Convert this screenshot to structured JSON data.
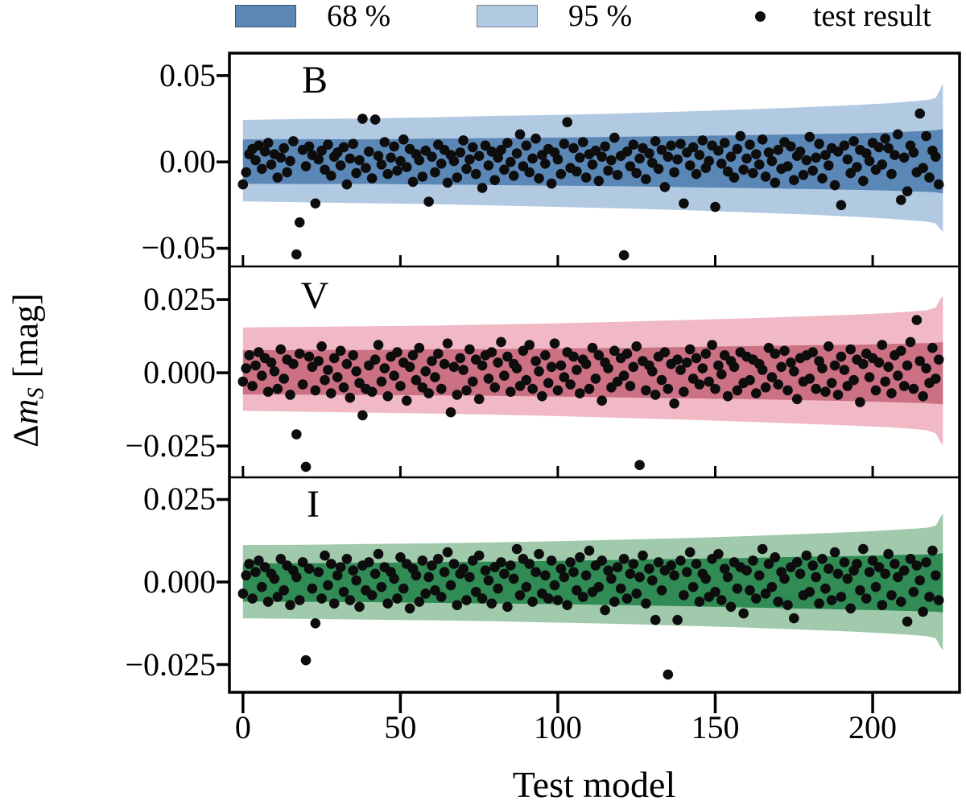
{
  "figure": {
    "legend": [
      {
        "type": "patch",
        "label": "68 %"
      },
      {
        "type": "patch",
        "label": "95 %"
      },
      {
        "type": "marker",
        "label": "test result"
      }
    ],
    "xlabel": "Test model",
    "ylabel": {
      "prefix": "Δ",
      "variable": "m",
      "subscript": "S",
      "suffix": "[mag]",
      "plain": "Δm_S [mag]"
    }
  },
  "colors": {
    "marker": "#0d0d0d",
    "frame": "#000000",
    "legend68": "#5a87b6",
    "legend95": "#b2c9e2"
  },
  "chart_data": {
    "type": "area+scatter",
    "description": "Residuals of surrogate-model test results in B, V, I bands with 68% and 95% confidence bands",
    "x_axis": {
      "label": "Test model",
      "ticks": [
        0,
        50,
        100,
        150,
        200
      ],
      "tick_labels": [
        "0",
        "50",
        "100",
        "150",
        "200"
      ],
      "lim": [
        -4.3,
        227.6
      ]
    },
    "panels": [
      {
        "label": "B",
        "ylim": [
          -0.0605,
          0.063
        ],
        "yticks": [
          {
            "t": "0.05",
            "v": 0.05
          },
          {
            "t": "0.00",
            "v": 0.0
          },
          {
            "t": "−0.05",
            "v": -0.05
          }
        ],
        "colors": {
          "band68": "#5a87b6",
          "band95": "#b2c9e2"
        },
        "band95": {
          "x": [
            0,
            20,
            40,
            60,
            80,
            100,
            120,
            140,
            160,
            180,
            195,
            205,
            212,
            217,
            220,
            221.5,
            222.3
          ],
          "upper": [
            0.0243,
            0.0249,
            0.0252,
            0.0258,
            0.0267,
            0.0272,
            0.0281,
            0.0292,
            0.0304,
            0.0318,
            0.033,
            0.034,
            0.035,
            0.0358,
            0.037,
            0.042,
            0.0458
          ],
          "lower": [
            -0.0228,
            -0.0234,
            -0.0239,
            -0.0244,
            -0.0252,
            -0.026,
            -0.0269,
            -0.0279,
            -0.0292,
            -0.0305,
            -0.0318,
            -0.0328,
            -0.0338,
            -0.0345,
            -0.0356,
            -0.039,
            -0.0405
          ]
        },
        "band68": {
          "x": [
            0,
            20,
            40,
            60,
            80,
            100,
            120,
            140,
            160,
            180,
            195,
            205,
            212,
            217,
            220,
            222.3
          ],
          "upper": [
            0.013,
            0.0132,
            0.0131,
            0.0135,
            0.0138,
            0.0141,
            0.0146,
            0.015,
            0.0155,
            0.0161,
            0.0166,
            0.0171,
            0.0176,
            0.018,
            0.0184,
            0.019
          ],
          "lower": [
            -0.0126,
            -0.0128,
            -0.0127,
            -0.0131,
            -0.0134,
            -0.0137,
            -0.0141,
            -0.0146,
            -0.0151,
            -0.0157,
            -0.0162,
            -0.0166,
            -0.017,
            -0.0173,
            -0.0176,
            -0.0182
          ]
        },
        "scatter_x_step": 1,
        "scatter_y_unit": 0.0001,
        "scatter_y": [
          -130,
          -60,
          45,
          75,
          10,
          95,
          -40,
          60,
          110,
          -15,
          45,
          -90,
          25,
          80,
          -60,
          5,
          120,
          -535,
          -350,
          70,
          -25,
          90,
          40,
          -240,
          15,
          65,
          -45,
          100,
          -80,
          30,
          55,
          -20,
          85,
          -130,
          20,
          105,
          -65,
          10,
          250,
          -35,
          60,
          -95,
          245,
          35,
          -15,
          115,
          -70,
          25,
          90,
          -50,
          5,
          130,
          -30,
          75,
          -115,
          45,
          10,
          -85,
          65,
          -230,
          30,
          -60,
          100,
          -10,
          70,
          -120,
          40,
          5,
          -90,
          55,
          125,
          -40,
          15,
          85,
          -70,
          35,
          -150,
          95,
          -20,
          60,
          -105,
          25,
          70,
          -45,
          110,
          0,
          -80,
          50,
          160,
          -25,
          95,
          -60,
          20,
          135,
          -95,
          40,
          -10,
          75,
          -125,
          55,
          15,
          -70,
          105,
          230,
          -35,
          80,
          -55,
          25,
          115,
          -90,
          45,
          -15,
          65,
          -110,
          30,
          90,
          -50,
          10,
          140,
          -75,
          35,
          -540,
          60,
          -25,
          100,
          -65,
          20,
          80,
          -100,
          50,
          -5,
          120,
          -40,
          70,
          -145,
          30,
          95,
          -60,
          15,
          105,
          -240,
          55,
          -20,
          85,
          -70,
          40,
          125,
          -35,
          5,
          95,
          -260,
          65,
          -10,
          110,
          -55,
          30,
          -90,
          75,
          150,
          -45,
          20,
          100,
          -65,
          45,
          -15,
          130,
          -85,
          55,
          5,
          -120,
          70,
          -40,
          115,
          -25,
          90,
          -105,
          35,
          60,
          -75,
          10,
          145,
          -50,
          25,
          105,
          -95,
          40,
          -20,
          80,
          -135,
          60,
          -250,
          95,
          15,
          -65,
          120,
          -30,
          70,
          -110,
          50,
          5,
          110,
          -45,
          85,
          -15,
          135,
          80,
          -70,
          40,
          160,
          -220,
          25,
          -170,
          95,
          55,
          -60,
          280,
          -35,
          150,
          -90,
          65,
          30,
          -130
        ]
      },
      {
        "label": "V",
        "ylim": [
          -0.0357,
          0.0363
        ],
        "yticks": [
          {
            "t": "0.025",
            "v": 0.025
          },
          {
            "t": "0.000",
            "v": 0.0
          },
          {
            "t": "−0.025",
            "v": -0.025
          }
        ],
        "colors": {
          "band68": "#cb7183",
          "band95": "#f0b9c5"
        },
        "band95": {
          "x": [
            0,
            20,
            40,
            60,
            80,
            100,
            120,
            140,
            160,
            180,
            195,
            205,
            212,
            217,
            220,
            221.5,
            222.3
          ],
          "upper": [
            0.0155,
            0.0157,
            0.0159,
            0.0161,
            0.0165,
            0.0169,
            0.0174,
            0.018,
            0.0186,
            0.0193,
            0.0199,
            0.0204,
            0.0209,
            0.0213,
            0.0222,
            0.0252,
            0.0262
          ],
          "lower": [
            -0.013,
            -0.0133,
            -0.0136,
            -0.0139,
            -0.0143,
            -0.0148,
            -0.0154,
            -0.016,
            -0.0167,
            -0.0175,
            -0.0181,
            -0.0186,
            -0.0191,
            -0.0196,
            -0.0206,
            -0.0236,
            -0.0248
          ]
        },
        "band68": {
          "x": [
            0,
            20,
            40,
            60,
            80,
            100,
            120,
            140,
            160,
            180,
            195,
            205,
            212,
            217,
            220,
            222.3
          ],
          "upper": [
            0.0077,
            0.0078,
            0.0078,
            0.008,
            0.0081,
            0.0083,
            0.0085,
            0.0088,
            0.0091,
            0.0094,
            0.0096,
            0.0098,
            0.01,
            0.0101,
            0.0103,
            0.0105
          ],
          "lower": [
            -0.0074,
            -0.0075,
            -0.0076,
            -0.0077,
            -0.0079,
            -0.0081,
            -0.0084,
            -0.0087,
            -0.009,
            -0.0094,
            -0.0097,
            -0.01,
            -0.0102,
            -0.0104,
            -0.0106,
            -0.0108
          ]
        },
        "scatter_x_step": 1,
        "scatter_y_unit": 0.0001,
        "scatter_y": [
          -30,
          15,
          60,
          -45,
          25,
          70,
          -10,
          50,
          -65,
          35,
          5,
          -55,
          80,
          -20,
          45,
          -75,
          30,
          -210,
          65,
          -40,
          -321,
          55,
          20,
          -60,
          40,
          90,
          -25,
          10,
          -70,
          50,
          -15,
          75,
          -50,
          30,
          -85,
          60,
          5,
          -35,
          -145,
          -55,
          25,
          -65,
          45,
          95,
          -30,
          15,
          -80,
          55,
          -10,
          70,
          -45,
          35,
          -95,
          20,
          60,
          -25,
          85,
          -50,
          5,
          -70,
          40,
          -15,
          65,
          -55,
          30,
          100,
          -135,
          20,
          -75,
          50,
          10,
          -60,
          80,
          -30,
          45,
          -90,
          25,
          60,
          -20,
          70,
          -50,
          35,
          105,
          -10,
          55,
          -65,
          30,
          15,
          -45,
          75,
          -25,
          95,
          -55,
          40,
          5,
          -80,
          60,
          -35,
          20,
          100,
          -60,
          25,
          -15,
          70,
          -40,
          55,
          10,
          -70,
          45,
          30,
          -55,
          85,
          -20,
          60,
          -95,
          35,
          15,
          -50,
          75,
          -30,
          50,
          -10,
          65,
          -45,
          20,
          90,
          -315,
          40,
          -60,
          25,
          5,
          -75,
          55,
          -25,
          70,
          -55,
          30,
          -105,
          45,
          10,
          -65,
          35,
          80,
          -20,
          50,
          -40,
          15,
          65,
          -30,
          95,
          -55,
          25,
          -5,
          60,
          -80,
          40,
          20,
          -60,
          70,
          -35,
          55,
          -25,
          45,
          -70,
          30,
          10,
          -50,
          85,
          -15,
          65,
          -40,
          20,
          75,
          -60,
          35,
          5,
          -90,
          50,
          -30,
          60,
          -20,
          70,
          -55,
          40,
          15,
          -65,
          90,
          -35,
          25,
          -75,
          55,
          10,
          -45,
          80,
          -25,
          45,
          -100,
          30,
          65,
          -15,
          50,
          -60,
          35,
          95,
          -30,
          20,
          -70,
          60,
          -10,
          75,
          -45,
          25,
          105,
          -55,
          180,
          40,
          -80,
          15,
          -35,
          85,
          -20,
          45
        ]
      },
      {
        "label": "I",
        "ylim": [
          -0.0334,
          0.0317
        ],
        "yticks": [
          {
            "t": "0.025",
            "v": 0.025
          },
          {
            "t": "0.000",
            "v": 0.0
          },
          {
            "t": "−0.025",
            "v": -0.025
          }
        ],
        "colors": {
          "band68": "#308b55",
          "band95": "#a0caab"
        },
        "band95": {
          "x": [
            0,
            20,
            40,
            60,
            80,
            100,
            120,
            140,
            160,
            180,
            195,
            205,
            212,
            217,
            220,
            221.5,
            222.3
          ],
          "upper": [
            0.0112,
            0.0113,
            0.0115,
            0.0117,
            0.012,
            0.0124,
            0.0128,
            0.0133,
            0.0139,
            0.0146,
            0.0152,
            0.0157,
            0.0161,
            0.0164,
            0.017,
            0.0196,
            0.0207
          ],
          "lower": [
            -0.011,
            -0.0112,
            -0.0114,
            -0.0116,
            -0.0119,
            -0.0123,
            -0.0127,
            -0.0132,
            -0.0138,
            -0.0145,
            -0.0151,
            -0.0156,
            -0.016,
            -0.0164,
            -0.017,
            -0.0196,
            -0.0207
          ]
        },
        "band68": {
          "x": [
            0,
            20,
            40,
            60,
            80,
            100,
            120,
            140,
            160,
            180,
            195,
            205,
            212,
            217,
            220,
            222.3
          ],
          "upper": [
            0.0056,
            0.0057,
            0.0058,
            0.006,
            0.0062,
            0.0064,
            0.0067,
            0.007,
            0.0073,
            0.0077,
            0.0079,
            0.0081,
            0.0083,
            0.0084,
            0.0085,
            0.0087
          ],
          "lower": [
            -0.0059,
            -0.006,
            -0.0061,
            -0.0063,
            -0.0065,
            -0.0067,
            -0.007,
            -0.0073,
            -0.0077,
            -0.0081,
            -0.0084,
            -0.0086,
            -0.0088,
            -0.0089,
            -0.009,
            -0.0092
          ]
        },
        "scatter_x_step": 1,
        "scatter_y_unit": 0.0001,
        "scatter_y": [
          -35,
          20,
          55,
          -50,
          30,
          65,
          -15,
          45,
          -60,
          25,
          10,
          -45,
          70,
          -25,
          50,
          -70,
          35,
          15,
          -55,
          60,
          -237,
          40,
          -20,
          -125,
          30,
          -50,
          80,
          -10,
          55,
          -65,
          20,
          45,
          -30,
          70,
          -55,
          35,
          5,
          -75,
          50,
          -25,
          60,
          -40,
          25,
          85,
          -15,
          45,
          -65,
          30,
          10,
          -50,
          75,
          -20,
          55,
          -80,
          40,
          20,
          -60,
          65,
          -35,
          15,
          50,
          -25,
          70,
          -45,
          30,
          90,
          -10,
          55,
          -70,
          25,
          40,
          -55,
          15,
          65,
          -30,
          80,
          -50,
          35,
          5,
          -65,
          45,
          -20,
          60,
          25,
          -75,
          50,
          10,
          100,
          -40,
          70,
          -15,
          55,
          -60,
          30,
          85,
          -35,
          20,
          -50,
          65,
          -10,
          -55,
          40,
          15,
          -70,
          60,
          30,
          -25,
          75,
          -45,
          20,
          95,
          -30,
          50,
          -15,
          65,
          -85,
          35,
          10,
          -60,
          45,
          -20,
          70,
          -50,
          25,
          55,
          -35,
          15,
          80,
          -65,
          40,
          5,
          -115,
          60,
          -25,
          35,
          -280,
          50,
          20,
          -115,
          65,
          -40,
          30,
          90,
          -15,
          55,
          -60,
          25,
          10,
          -45,
          70,
          -30,
          85,
          -55,
          40,
          15,
          -75,
          60,
          -20,
          45,
          -95,
          35,
          -25,
          65,
          -50,
          20,
          100,
          -35,
          55,
          -15,
          75,
          -60,
          30,
          10,
          -70,
          45,
          -110,
          60,
          25,
          -40,
          80,
          -30,
          50,
          15,
          -65,
          70,
          -20,
          40,
          -55,
          90,
          25,
          -45,
          60,
          10,
          -80,
          35,
          55,
          -25,
          100,
          -50,
          30,
          65,
          -15,
          45,
          -70,
          25,
          85,
          -40,
          55,
          15,
          -60,
          35,
          -120,
          70,
          -30,
          50,
          5,
          -90,
          60,
          -45,
          95,
          20,
          -55
        ]
      }
    ]
  }
}
